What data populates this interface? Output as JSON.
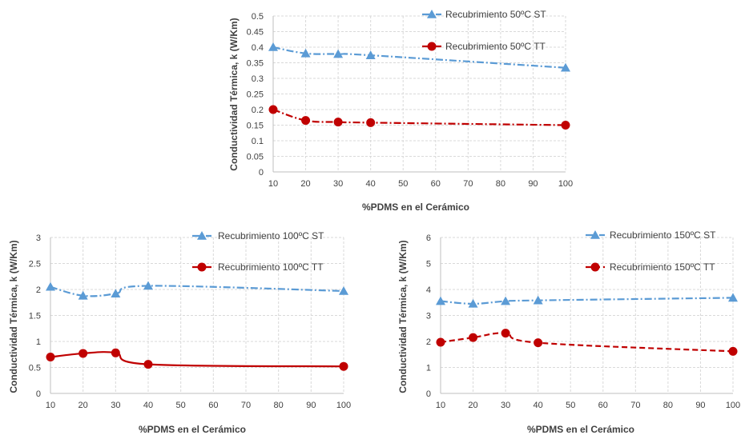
{
  "chart_data": [
    {
      "type": "line",
      "xlabel": "%PDMS en el Cerámico",
      "ylabel": "Conductividad Térmica, k (W/Km)",
      "x_ticks": [
        10,
        20,
        30,
        40,
        50,
        60,
        70,
        80,
        90,
        100
      ],
      "xlim": [
        10,
        100
      ],
      "ylim": [
        0,
        0.5
      ],
      "y_ticks": [
        "0",
        "0.05",
        "0.1",
        "0.15",
        "0.2",
        "0.25",
        "0.3",
        "0.35",
        "0.4",
        "0.45",
        "0.5"
      ],
      "grid": true,
      "legend_position": "top-right",
      "series": [
        {
          "name": "Recubrimiento 50ºC ST",
          "color": "#5B9BD5",
          "marker": "triangle",
          "dash": "dashdot",
          "x": [
            10,
            20,
            30,
            40,
            100
          ],
          "y": [
            0.4,
            0.38,
            0.378,
            0.374,
            0.334
          ]
        },
        {
          "name": "Recubrimiento 50ºC TT",
          "color": "#C00000",
          "marker": "circle",
          "dash": "dashdot",
          "x": [
            10,
            20,
            30,
            40,
            100
          ],
          "y": [
            0.2,
            0.165,
            0.16,
            0.158,
            0.15
          ]
        }
      ]
    },
    {
      "type": "line",
      "xlabel": "%PDMS en el Cerámico",
      "ylabel": "Conductividad Térmica, k (W/Km)",
      "x_ticks": [
        10,
        20,
        30,
        40,
        50,
        60,
        70,
        80,
        90,
        100
      ],
      "xlim": [
        10,
        100
      ],
      "ylim": [
        0,
        3
      ],
      "y_ticks": [
        "0",
        "0.5",
        "1",
        "1.5",
        "2",
        "2.5",
        "3"
      ],
      "grid": true,
      "legend_position": "top-right",
      "series": [
        {
          "name": "Recubrimiento 100ºC ST",
          "color": "#5B9BD5",
          "marker": "triangle",
          "dash": "dashdot",
          "x": [
            10,
            20,
            30,
            40,
            100
          ],
          "y": [
            2.05,
            1.88,
            1.92,
            2.07,
            1.97
          ]
        },
        {
          "name": "Recubrimiento 100ºC TT",
          "color": "#C00000",
          "marker": "circle",
          "dash": "solid",
          "x": [
            10,
            20,
            30,
            40,
            100
          ],
          "y": [
            0.7,
            0.77,
            0.78,
            0.56,
            0.52
          ]
        }
      ]
    },
    {
      "type": "line",
      "xlabel": "%PDMS en el Cerámico",
      "ylabel": "Conductividad Térmica, k (W/Km)",
      "x_ticks": [
        10,
        20,
        30,
        40,
        50,
        60,
        70,
        80,
        90,
        100
      ],
      "xlim": [
        10,
        100
      ],
      "ylim": [
        0,
        6
      ],
      "y_ticks": [
        "0",
        "1",
        "2",
        "3",
        "4",
        "5",
        "6"
      ],
      "grid": true,
      "legend_position": "top-right",
      "series": [
        {
          "name": "Recubrimiento 150ºC ST",
          "color": "#5B9BD5",
          "marker": "triangle",
          "dash": "dashdot",
          "x": [
            10,
            20,
            30,
            40,
            100
          ],
          "y": [
            3.55,
            3.45,
            3.55,
            3.58,
            3.68
          ]
        },
        {
          "name": "Recubrimiento 150ºC TT",
          "color": "#C00000",
          "marker": "circle",
          "dash": "dashed",
          "x": [
            10,
            20,
            30,
            40,
            100
          ],
          "y": [
            1.97,
            2.15,
            2.32,
            1.95,
            1.62
          ]
        }
      ]
    }
  ]
}
